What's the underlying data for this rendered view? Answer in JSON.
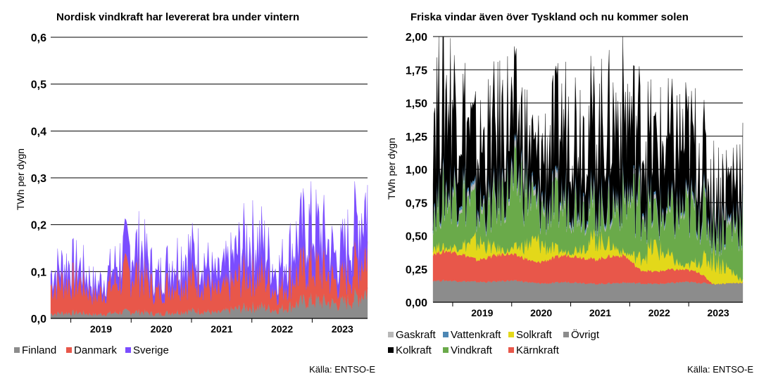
{
  "chart_data": [
    {
      "type": "area",
      "stacked": true,
      "title": "Nordisk vindkraft har levererat bra under vintern",
      "ylabel": "TWh per dygn",
      "xlabel": "",
      "ylim": [
        0,
        0.6
      ],
      "yticks": [
        "0,0",
        "0,1",
        "0,2",
        "0,3",
        "0,4",
        "0,5",
        "0,6"
      ],
      "ytick_values": [
        0,
        0.1,
        0.2,
        0.3,
        0.4,
        0.5,
        0.6
      ],
      "x_years": [
        "2019",
        "2020",
        "2021",
        "2022",
        "2023"
      ],
      "x_range": [
        "2018-09",
        "2023-12"
      ],
      "grid": true,
      "legend_placement": "bottom",
      "source": "Källa: ENTSO-E",
      "series": [
        {
          "name": "Finland",
          "color": "#8c8c8c",
          "months": [
            "2018-09",
            "2018-12",
            "2019-03",
            "2019-06",
            "2019-09",
            "2019-12",
            "2020-03",
            "2020-06",
            "2020-09",
            "2020-12",
            "2021-03",
            "2021-06",
            "2021-09",
            "2021-12",
            "2022-03",
            "2022-06",
            "2022-09",
            "2022-12",
            "2023-03",
            "2023-06",
            "2023-09",
            "2023-12"
          ],
          "values": [
            0.01,
            0.012,
            0.012,
            0.008,
            0.011,
            0.014,
            0.014,
            0.009,
            0.013,
            0.016,
            0.016,
            0.011,
            0.018,
            0.024,
            0.025,
            0.018,
            0.028,
            0.038,
            0.036,
            0.03,
            0.04,
            0.06
          ]
        },
        {
          "name": "Danmark",
          "color": "#e8574a",
          "months": [
            "2018-09",
            "2018-12",
            "2019-03",
            "2019-06",
            "2019-09",
            "2019-12",
            "2020-03",
            "2020-06",
            "2020-09",
            "2020-12",
            "2021-03",
            "2021-06",
            "2021-09",
            "2021-12",
            "2022-03",
            "2022-06",
            "2022-09",
            "2022-12",
            "2023-03",
            "2023-06",
            "2023-09",
            "2023-12"
          ],
          "values": [
            0.06,
            0.07,
            0.065,
            0.04,
            0.06,
            0.08,
            0.085,
            0.045,
            0.065,
            0.07,
            0.068,
            0.042,
            0.055,
            0.075,
            0.072,
            0.04,
            0.06,
            0.075,
            0.07,
            0.045,
            0.065,
            0.09
          ]
        },
        {
          "name": "Sverige",
          "color": "#7b4dff",
          "months": [
            "2018-09",
            "2018-12",
            "2019-03",
            "2019-06",
            "2019-09",
            "2019-12",
            "2020-03",
            "2020-06",
            "2020-09",
            "2020-12",
            "2021-03",
            "2021-06",
            "2021-09",
            "2021-12",
            "2022-03",
            "2022-06",
            "2022-09",
            "2022-12",
            "2023-03",
            "2023-06",
            "2023-09",
            "2023-12"
          ],
          "values": [
            0.025,
            0.035,
            0.032,
            0.02,
            0.03,
            0.05,
            0.055,
            0.03,
            0.045,
            0.055,
            0.05,
            0.03,
            0.05,
            0.07,
            0.068,
            0.04,
            0.065,
            0.085,
            0.075,
            0.05,
            0.075,
            0.11
          ]
        }
      ]
    },
    {
      "type": "area",
      "stacked": true,
      "title": "Friska vindar även över Tyskland och nu kommer solen",
      "ylabel": "TWh per dygn",
      "xlabel": "",
      "ylim": [
        0,
        2.0
      ],
      "yticks": [
        "0,00",
        "0,25",
        "0,50",
        "0,75",
        "1,00",
        "1,25",
        "1,50",
        "1,75",
        "2,00"
      ],
      "ytick_values": [
        0,
        0.25,
        0.5,
        0.75,
        1.0,
        1.25,
        1.5,
        1.75,
        2.0
      ],
      "x_years": [
        "2019",
        "2020",
        "2021",
        "2022",
        "2023"
      ],
      "x_range": [
        "2018-09",
        "2023-12"
      ],
      "grid": true,
      "legend_placement": "bottom",
      "source": "Källa: ENTSO-E",
      "legend_order": [
        "Gaskraft",
        "Vattenkraft",
        "Solkraft",
        "Övrigt",
        "Kolkraft",
        "Vindkraft",
        "Kärnkraft"
      ],
      "series": [
        {
          "name": "Övrigt",
          "color": "#8c8c8c",
          "months": [
            "2018-09",
            "2018-12",
            "2019-03",
            "2019-06",
            "2019-09",
            "2019-12",
            "2020-03",
            "2020-06",
            "2020-09",
            "2020-12",
            "2021-03",
            "2021-06",
            "2021-09",
            "2021-12",
            "2022-03",
            "2022-06",
            "2022-09",
            "2022-12",
            "2023-03",
            "2023-06",
            "2023-09",
            "2023-12"
          ],
          "values": [
            0.16,
            0.16,
            0.155,
            0.15,
            0.15,
            0.16,
            0.155,
            0.14,
            0.14,
            0.15,
            0.145,
            0.135,
            0.14,
            0.145,
            0.14,
            0.135,
            0.14,
            0.15,
            0.145,
            0.135,
            0.14,
            0.145
          ]
        },
        {
          "name": "Kärnkraft",
          "color": "#e8574a",
          "months": [
            "2018-09",
            "2018-12",
            "2019-03",
            "2019-06",
            "2019-09",
            "2019-12",
            "2020-03",
            "2020-06",
            "2020-09",
            "2020-12",
            "2021-03",
            "2021-06",
            "2021-09",
            "2021-12",
            "2022-03",
            "2022-06",
            "2022-09",
            "2022-12",
            "2023-03",
            "2023-06",
            "2023-09",
            "2023-12"
          ],
          "values": [
            0.2,
            0.22,
            0.2,
            0.16,
            0.19,
            0.2,
            0.18,
            0.15,
            0.18,
            0.2,
            0.19,
            0.18,
            0.2,
            0.2,
            0.1,
            0.09,
            0.1,
            0.09,
            0.08,
            0,
            0,
            0
          ]
        },
        {
          "name": "Solkraft",
          "color": "#e3d81a",
          "months": [
            "2018-09",
            "2018-12",
            "2019-03",
            "2019-06",
            "2019-09",
            "2019-12",
            "2020-03",
            "2020-06",
            "2020-09",
            "2020-12",
            "2021-03",
            "2021-06",
            "2021-09",
            "2021-12",
            "2022-03",
            "2022-06",
            "2022-09",
            "2022-12",
            "2023-03",
            "2023-06",
            "2023-09",
            "2023-12"
          ],
          "values": [
            0.06,
            0.02,
            0.07,
            0.14,
            0.07,
            0.02,
            0.08,
            0.16,
            0.08,
            0.02,
            0.07,
            0.16,
            0.09,
            0.02,
            0.09,
            0.19,
            0.1,
            0.02,
            0.08,
            0.2,
            0.11,
            0.02
          ]
        },
        {
          "name": "Vindkraft",
          "color": "#6aaa4a",
          "months": [
            "2018-09",
            "2018-12",
            "2019-03",
            "2019-06",
            "2019-09",
            "2019-12",
            "2020-03",
            "2020-06",
            "2020-09",
            "2020-12",
            "2021-03",
            "2021-06",
            "2021-09",
            "2021-12",
            "2022-03",
            "2022-06",
            "2022-09",
            "2022-12",
            "2023-03",
            "2023-06",
            "2023-09",
            "2023-12"
          ],
          "values": [
            0.28,
            0.42,
            0.4,
            0.22,
            0.3,
            0.46,
            0.5,
            0.24,
            0.3,
            0.38,
            0.34,
            0.22,
            0.26,
            0.42,
            0.42,
            0.24,
            0.3,
            0.4,
            0.4,
            0.24,
            0.3,
            0.48
          ]
        },
        {
          "name": "Gaskraft",
          "color": "#b8b8b8",
          "months": [
            "2018-09",
            "2018-12",
            "2019-03",
            "2019-06",
            "2019-09",
            "2019-12",
            "2020-03",
            "2020-06",
            "2020-09",
            "2020-12",
            "2021-03",
            "2021-06",
            "2021-09",
            "2021-12",
            "2022-03",
            "2022-06",
            "2022-09",
            "2022-12",
            "2023-03",
            "2023-06",
            "2023-09",
            "2023-12"
          ],
          "values": [
            0.03,
            0.04,
            0.035,
            0.03,
            0.035,
            0.04,
            0.04,
            0.035,
            0.04,
            0.045,
            0.04,
            0.035,
            0.035,
            0.03,
            0.03,
            0.025,
            0.02,
            0.025,
            0.03,
            0.03,
            0.03,
            0.035
          ]
        },
        {
          "name": "Vattenkraft",
          "color": "#4d87b4",
          "months": [
            "2018-09",
            "2018-12",
            "2019-03",
            "2019-06",
            "2019-09",
            "2019-12",
            "2020-03",
            "2020-06",
            "2020-09",
            "2020-12",
            "2021-03",
            "2021-06",
            "2021-09",
            "2021-12",
            "2022-03",
            "2022-06",
            "2022-09",
            "2022-12",
            "2023-03",
            "2023-06",
            "2023-09",
            "2023-12"
          ],
          "values": [
            0.02,
            0.02,
            0.025,
            0.025,
            0.02,
            0.02,
            0.025,
            0.025,
            0.02,
            0.02,
            0.025,
            0.025,
            0.02,
            0.02,
            0.02,
            0.02,
            0.02,
            0.02,
            0.025,
            0.025,
            0.02,
            0.02
          ]
        },
        {
          "name": "Kolkraft",
          "color": "#000000",
          "months": [
            "2018-09",
            "2018-12",
            "2019-03",
            "2019-06",
            "2019-09",
            "2019-12",
            "2020-03",
            "2020-06",
            "2020-09",
            "2020-12",
            "2021-03",
            "2021-06",
            "2021-09",
            "2021-12",
            "2022-03",
            "2022-06",
            "2022-09",
            "2022-12",
            "2023-03",
            "2023-06",
            "2023-09",
            "2023-12"
          ],
          "values": [
            0.75,
            0.7,
            0.55,
            0.4,
            0.5,
            0.5,
            0.35,
            0.3,
            0.45,
            0.55,
            0.55,
            0.55,
            0.6,
            0.6,
            0.5,
            0.45,
            0.5,
            0.5,
            0.4,
            0.25,
            0.3,
            0.35
          ]
        }
      ]
    }
  ]
}
